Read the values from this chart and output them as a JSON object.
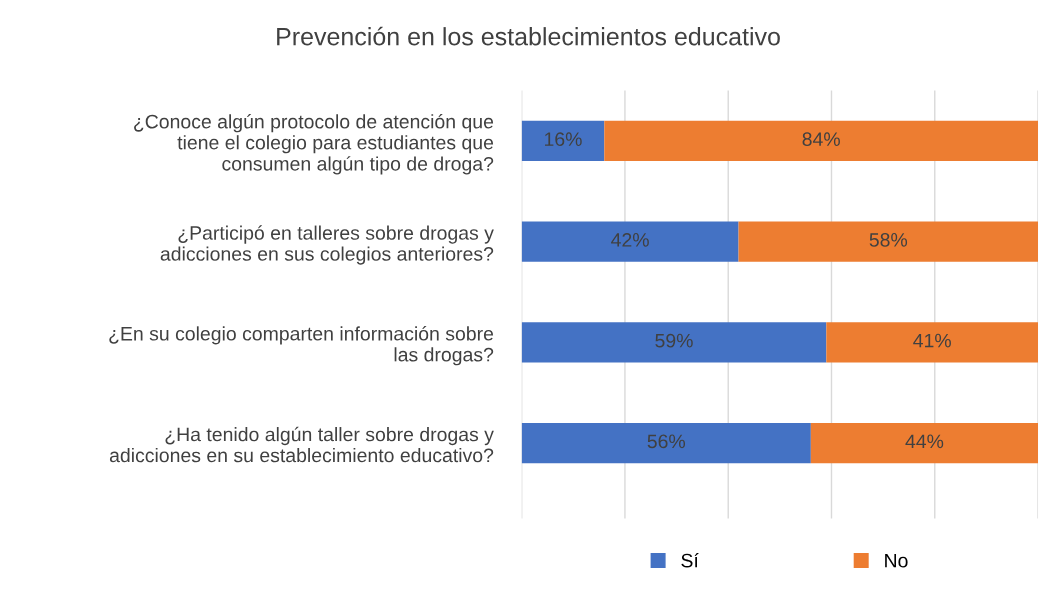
{
  "chart_data": {
    "type": "bar",
    "orientation": "horizontal",
    "stacked": true,
    "title": "Prevención en los establecimientos educativo",
    "categories": [
      "¿Conoce algún protocolo de atención que\ntiene el colegio para estudiantes que\nconsumen algún tipo de droga?",
      "¿Participó en talleres sobre drogas y\nadicciones en sus colegios anteriores?",
      "¿En su colegio comparten información sobre\nlas drogas?",
      "¿Ha tenido algún taller sobre drogas y\nadicciones en su establecimiento educativo?"
    ],
    "series": [
      {
        "name": "Sí",
        "color": "#4472c4",
        "values": [
          16,
          42,
          59,
          56
        ],
        "value_labels": [
          "16%",
          "42%",
          "59%",
          "56%"
        ]
      },
      {
        "name": "No",
        "color": "#ed7d31",
        "values": [
          84,
          58,
          41,
          44
        ],
        "value_labels": [
          "84%",
          "58%",
          "41%",
          "44%"
        ]
      }
    ],
    "xlim": [
      0,
      100
    ],
    "xticks": [
      {
        "value": 0,
        "label": null
      },
      {
        "value": 20,
        "label": null
      },
      {
        "value": 40,
        "label": null
      },
      {
        "value": 60,
        "label": null
      },
      {
        "value": 80,
        "label": null
      },
      {
        "value": 100,
        "label": null
      }
    ],
    "tick_labels": "y",
    "grid": "x",
    "legend": "bottom"
  }
}
